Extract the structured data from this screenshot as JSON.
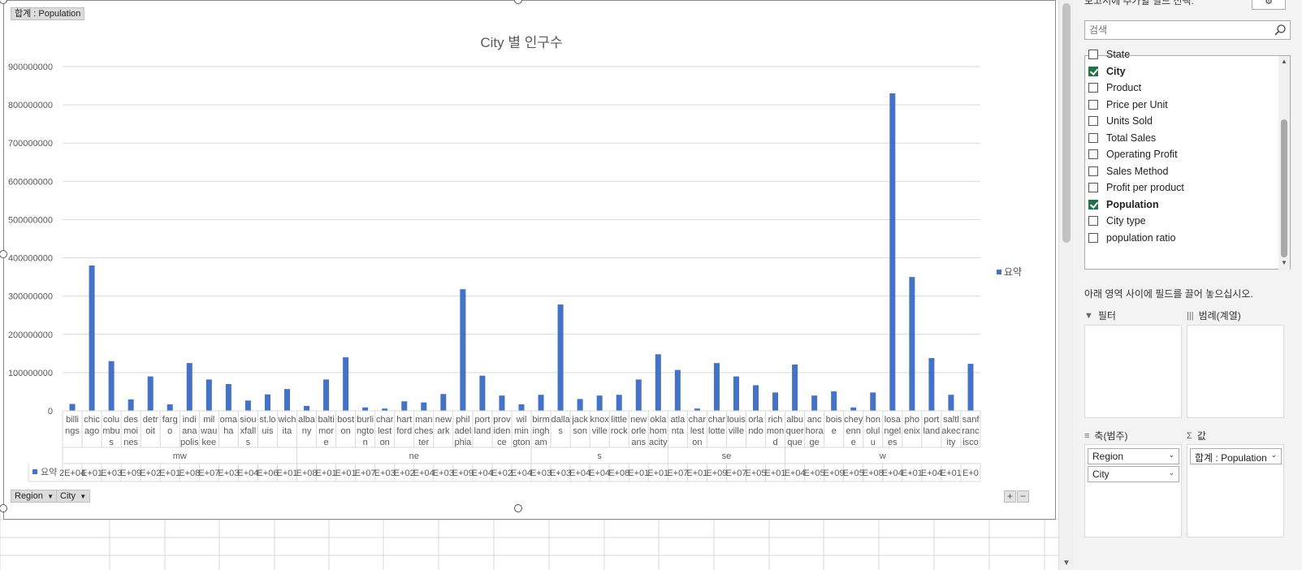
{
  "pivot": {
    "value_field_button": "합계 : Population",
    "axis_buttons": [
      {
        "label": "Region"
      },
      {
        "label": "City"
      }
    ],
    "expand_label": "+",
    "collapse_label": "−"
  },
  "chart_data": {
    "type": "bar",
    "title": "City 별 인구수",
    "xlabel": "",
    "ylabel": "",
    "ylim": [
      0,
      900000000
    ],
    "yticks": [
      0,
      100000000,
      200000000,
      300000000,
      400000000,
      500000000,
      600000000,
      700000000,
      800000000,
      900000000
    ],
    "ytick_labels": [
      "0",
      "100000000",
      "200000000",
      "300000000",
      "400000000",
      "500000000",
      "600000000",
      "700000000",
      "800000000",
      "900000000"
    ],
    "grid": true,
    "legend": {
      "position": "right",
      "entries": [
        "요약"
      ]
    },
    "bar_color": "#4472c4",
    "groups": [
      {
        "name": "mw",
        "cities": [
          {
            "label": "billings",
            "lines": [
              "billi",
              "ngs"
            ],
            "value": 18000000,
            "table": "2E+04"
          },
          {
            "label": "chicago",
            "lines": [
              "chic",
              "ago"
            ],
            "value": 380000000,
            "table": "E+01"
          },
          {
            "label": "columbus",
            "lines": [
              "colu",
              "mbu",
              "s"
            ],
            "value": 130000000,
            "table": "E+03"
          },
          {
            "label": "des moines",
            "lines": [
              "des",
              "moi",
              "nes"
            ],
            "value": 30000000,
            "table": "E+09"
          },
          {
            "label": "detroit",
            "lines": [
              "detr",
              "oit"
            ],
            "value": 90000000,
            "table": "E+02"
          },
          {
            "label": "fargo",
            "lines": [
              "farg",
              "o"
            ],
            "value": 17000000,
            "table": "E+01"
          },
          {
            "label": "indianapolis",
            "lines": [
              "indi",
              "ana",
              "polis"
            ],
            "value": 125000000,
            "table": "E+08"
          },
          {
            "label": "milwaukee",
            "lines": [
              "mil",
              "wau",
              "kee"
            ],
            "value": 82000000,
            "table": "E+07"
          },
          {
            "label": "omaha",
            "lines": [
              "oma",
              "ha"
            ],
            "value": 70000000,
            "table": "E+03"
          },
          {
            "label": "sioux falls",
            "lines": [
              "siou",
              "xfall",
              "s"
            ],
            "value": 27000000,
            "table": "E+04"
          },
          {
            "label": "st.louis",
            "lines": [
              "st.lo",
              "uis"
            ],
            "value": 43000000,
            "table": "E+06"
          },
          {
            "label": "wichita",
            "lines": [
              "wich",
              "ita"
            ],
            "value": 57000000,
            "table": "E+01"
          }
        ]
      },
      {
        "name": "ne",
        "cities": [
          {
            "label": "albany",
            "lines": [
              "alba",
              "ny"
            ],
            "value": 13000000,
            "table": "E+08"
          },
          {
            "label": "baltimore",
            "lines": [
              "balti",
              "mor",
              "e"
            ],
            "value": 82000000,
            "table": "E+01"
          },
          {
            "label": "boston",
            "lines": [
              "bost",
              "on"
            ],
            "value": 140000000,
            "table": "E+01"
          },
          {
            "label": "burlington",
            "lines": [
              "burli",
              "ngto",
              "n"
            ],
            "value": 9000000,
            "table": "E+07"
          },
          {
            "label": "charleston",
            "lines": [
              "char",
              "lest",
              "on"
            ],
            "value": 6000000,
            "table": "E+03"
          },
          {
            "label": "hartford",
            "lines": [
              "hart",
              "ford"
            ],
            "value": 25000000,
            "table": "E+02"
          },
          {
            "label": "manchester",
            "lines": [
              "man",
              "ches",
              "ter"
            ],
            "value": 22000000,
            "table": "E+04"
          },
          {
            "label": "newark",
            "lines": [
              "new",
              "ark"
            ],
            "value": 44000000,
            "table": "E+03"
          },
          {
            "label": "philadelphia",
            "lines": [
              "phil",
              "adel",
              "phia"
            ],
            "value": 318000000,
            "table": "E+09"
          },
          {
            "label": "portland",
            "lines": [
              "port",
              "land"
            ],
            "value": 92000000,
            "table": "E+04"
          },
          {
            "label": "providence",
            "lines": [
              "prov",
              "iden",
              "ce"
            ],
            "value": 40000000,
            "table": "E+02"
          },
          {
            "label": "wilmington",
            "lines": [
              "wil",
              "min",
              "gton"
            ],
            "value": 17000000,
            "table": "E+04"
          }
        ]
      },
      {
        "name": "s",
        "cities": [
          {
            "label": "birmingham",
            "lines": [
              "birm",
              "ingh",
              "am"
            ],
            "value": 42000000,
            "table": "E+03"
          },
          {
            "label": "dallas",
            "lines": [
              "dalla",
              "s"
            ],
            "value": 278000000,
            "table": "E+03"
          },
          {
            "label": "jackson",
            "lines": [
              "jack",
              "son"
            ],
            "value": 31000000,
            "table": "E+04"
          },
          {
            "label": "knoxville",
            "lines": [
              "knox",
              "ville"
            ],
            "value": 40000000,
            "table": "E+04"
          },
          {
            "label": "little rock",
            "lines": [
              "little",
              "rock"
            ],
            "value": 42000000,
            "table": "E+08"
          },
          {
            "label": "new orleans",
            "lines": [
              "new",
              "orle",
              "ans"
            ],
            "value": 82000000,
            "table": "E+01"
          },
          {
            "label": "oklahoma city",
            "lines": [
              "okla",
              "hom",
              "acity"
            ],
            "value": 148000000,
            "table": "E+01"
          }
        ]
      },
      {
        "name": "se",
        "cities": [
          {
            "label": "atlanta",
            "lines": [
              "atla",
              "nta"
            ],
            "value": 107000000,
            "table": "E+07"
          },
          {
            "label": "charleston",
            "lines": [
              "char",
              "lest",
              "on"
            ],
            "value": 6000000,
            "table": "E+01"
          },
          {
            "label": "charlotte",
            "lines": [
              "char",
              "lotte"
            ],
            "value": 125000000,
            "table": "E+09"
          },
          {
            "label": "louisville",
            "lines": [
              "louis",
              "ville"
            ],
            "value": 90000000,
            "table": "E+07"
          },
          {
            "label": "orlando",
            "lines": [
              "orla",
              "ndo"
            ],
            "value": 67000000,
            "table": "E+05"
          },
          {
            "label": "richmond",
            "lines": [
              "rich",
              "mon",
              "d"
            ],
            "value": 48000000,
            "table": "E+01"
          }
        ]
      },
      {
        "name": "w",
        "cities": [
          {
            "label": "albuquerque",
            "lines": [
              "albu",
              "quer",
              "que"
            ],
            "value": 121000000,
            "table": "E+04"
          },
          {
            "label": "anchorage",
            "lines": [
              "anc",
              "hora",
              "ge"
            ],
            "value": 40000000,
            "table": "E+05"
          },
          {
            "label": "boise",
            "lines": [
              "bois",
              "e"
            ],
            "value": 51000000,
            "table": "E+09"
          },
          {
            "label": "cheyenne",
            "lines": [
              "chey",
              "enn",
              "e"
            ],
            "value": 9000000,
            "table": "E+05"
          },
          {
            "label": "honolulu",
            "lines": [
              "hon",
              "olul",
              "u"
            ],
            "value": 48000000,
            "table": "E+08"
          },
          {
            "label": "los angeles",
            "lines": [
              "losa",
              "ngel",
              "es"
            ],
            "value": 830000000,
            "table": "E+04"
          },
          {
            "label": "phoenix",
            "lines": [
              "pho",
              "enix"
            ],
            "value": 350000000,
            "table": "E+01"
          },
          {
            "label": "portland",
            "lines": [
              "port",
              "land"
            ],
            "value": 138000000,
            "table": "E+04"
          },
          {
            "label": "salt lake city",
            "lines": [
              "saltl",
              "akec",
              "ity"
            ],
            "value": 42000000,
            "table": "E+01"
          },
          {
            "label": "san francisco",
            "lines": [
              "sanf",
              "ranc",
              "isco"
            ],
            "value": 123000000,
            "table": "E+0"
          }
        ]
      }
    ]
  },
  "data_table": {
    "series_label": "요약"
  },
  "pane": {
    "header": "보고서에 추가할 필드 선택:",
    "pin_label": "⚙",
    "search_placeholder": "검색",
    "fields": [
      {
        "name": "State",
        "checked": false
      },
      {
        "name": "City",
        "checked": true
      },
      {
        "name": "Product",
        "checked": false
      },
      {
        "name": "Price per Unit",
        "checked": false
      },
      {
        "name": "Units Sold",
        "checked": false
      },
      {
        "name": "Total Sales",
        "checked": false
      },
      {
        "name": "Operating Profit",
        "checked": false
      },
      {
        "name": "Sales Method",
        "checked": false
      },
      {
        "name": "Profit per product",
        "checked": false
      },
      {
        "name": "Population",
        "checked": true
      },
      {
        "name": "City type",
        "checked": false
      },
      {
        "name": "population ratio",
        "checked": false
      }
    ],
    "drag_hint": "아래 영역 사이에 필드를 끌어 놓으십시오.",
    "areas": {
      "filter": {
        "label": "필터"
      },
      "legend": {
        "label": "범례(계열)"
      },
      "axis": {
        "label": "축(범주)",
        "items": [
          "Region",
          "City"
        ]
      },
      "values": {
        "label": "값",
        "items": [
          "합계 : Population"
        ]
      }
    }
  }
}
